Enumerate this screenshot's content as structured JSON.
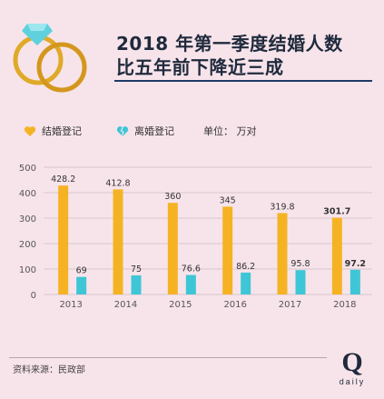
{
  "title": {
    "line1": "2018 年第一季度结婚人数",
    "line2": "比五年前下降近三成"
  },
  "legend": {
    "marriage_label": "结婚登记",
    "divorce_label": "离婚登记",
    "unit_label": "单位： 万对"
  },
  "colors": {
    "marriage": "#f5b324",
    "divorce": "#3ec6d6",
    "heart_dark": "#2a3d5e"
  },
  "chart_data": {
    "type": "bar",
    "categories": [
      "2013",
      "2014",
      "2015",
      "2016",
      "2017",
      "2018"
    ],
    "series": [
      {
        "name": "结婚登记",
        "values": [
          428.2,
          412.8,
          360,
          345,
          319.8,
          301.7
        ]
      },
      {
        "name": "离婚登记",
        "values": [
          69,
          75,
          76.6,
          86.2,
          95.8,
          97.2
        ]
      }
    ],
    "value_labels": {
      "marriage": [
        "428.2",
        "412.8",
        "360",
        "345",
        "319.8",
        "301.7"
      ],
      "divorce": [
        "69",
        "75",
        "76.6",
        "86.2",
        "95.8",
        "97.2"
      ]
    },
    "yticks": [
      "0",
      "100",
      "200",
      "300",
      "400",
      "500"
    ],
    "ylim": [
      0,
      500
    ],
    "grid": true,
    "legend_position": "top-left",
    "ylabel": "单位： 万对"
  },
  "footer": {
    "source": "资料来源：民政部"
  },
  "logo": {
    "letter": "Q",
    "word": "daily"
  }
}
